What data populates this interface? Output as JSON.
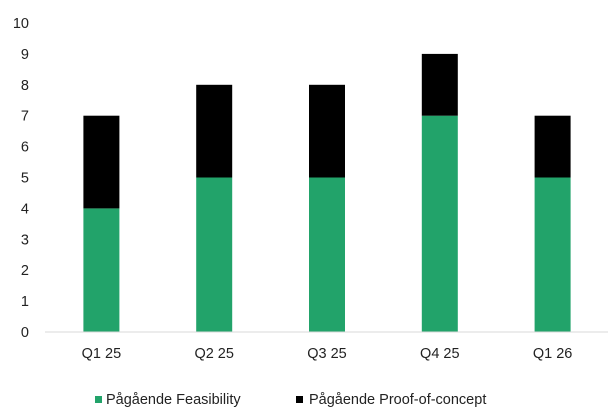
{
  "chart_data": {
    "type": "bar",
    "stacked": true,
    "title": "",
    "xlabel": "",
    "ylabel": "",
    "categories": [
      "Q1 25",
      "Q2 25",
      "Q3 25",
      "Q4 25",
      "Q1 26"
    ],
    "series": [
      {
        "name": "Pågående Feasibility",
        "values": [
          4,
          5,
          5,
          7,
          5
        ],
        "color": "#22A36A"
      },
      {
        "name": "Pågående Proof-of-concept",
        "values": [
          3,
          3,
          3,
          2,
          2
        ],
        "color": "#000000"
      }
    ],
    "ylim": [
      0,
      10
    ],
    "yticks": [
      "0",
      "1",
      "2",
      "3",
      "4",
      "5",
      "6",
      "7",
      "8",
      "9",
      "10"
    ],
    "grid": false,
    "legend_position": "bottom"
  }
}
